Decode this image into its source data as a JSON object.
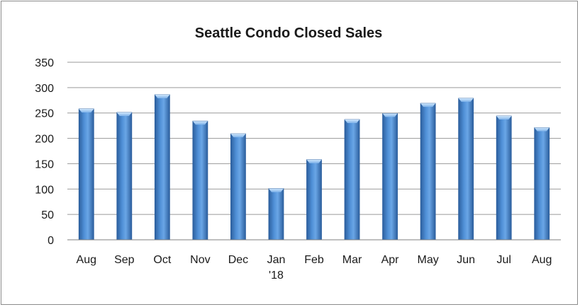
{
  "chart_data": {
    "type": "bar",
    "title": "Seattle Condo Closed Sales",
    "categories": [
      "Aug",
      "Sep",
      "Oct",
      "Nov",
      "Dec",
      "Jan '18",
      "Feb",
      "Mar",
      "Apr",
      "May",
      "Jun",
      "Jul",
      "Aug"
    ],
    "category_labels": [
      [
        "Aug"
      ],
      [
        "Sep"
      ],
      [
        "Oct"
      ],
      [
        "Nov"
      ],
      [
        "Dec"
      ],
      [
        "Jan",
        "'18"
      ],
      [
        "Feb"
      ],
      [
        "Mar"
      ],
      [
        "Apr"
      ],
      [
        "May"
      ],
      [
        "Jun"
      ],
      [
        "Jul"
      ],
      [
        "Aug"
      ]
    ],
    "values": [
      258,
      251,
      286,
      234,
      209,
      101,
      158,
      237,
      249,
      269,
      279,
      244,
      221
    ],
    "ylim": [
      0,
      350
    ],
    "yticks": [
      0,
      50,
      100,
      150,
      200,
      250,
      300,
      350
    ],
    "grid": true,
    "legend": "none",
    "colors": {
      "bar": "#4f8fd6",
      "bar_light": "#9cc8f2",
      "bar_dark": "#2c5f9e",
      "grid": "#9a9a9a",
      "axis": "#7f7f7f"
    }
  }
}
